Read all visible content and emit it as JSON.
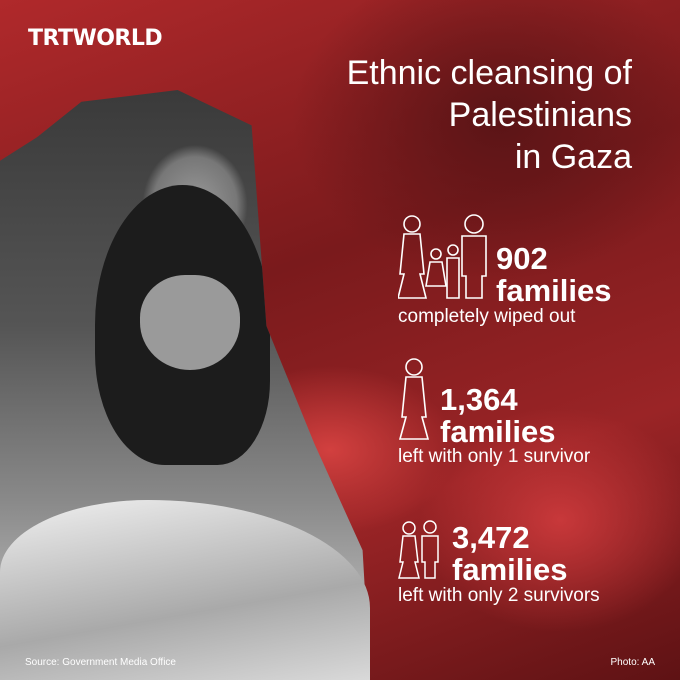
{
  "brand": {
    "logo": "TRTWORLD"
  },
  "title": {
    "line1": "Ethnic cleansing of",
    "line2": "Palestinians",
    "line3": "in Gaza"
  },
  "stats": [
    {
      "number": "902",
      "unit": "families",
      "caption": "completely wiped out",
      "icon": "family-of-four-icon"
    },
    {
      "number": "1,364",
      "unit": "families",
      "caption": "left with only 1 survivor",
      "icon": "woman-icon"
    },
    {
      "number": "3,472",
      "unit": "families",
      "caption": "left with only 2 survivors",
      "icon": "woman-and-man-icon"
    }
  ],
  "footer": {
    "source": "Source: Government Media Office",
    "photo": "Photo: AA"
  },
  "colors": {
    "accent": "#a82628",
    "text": "#ffffff"
  }
}
